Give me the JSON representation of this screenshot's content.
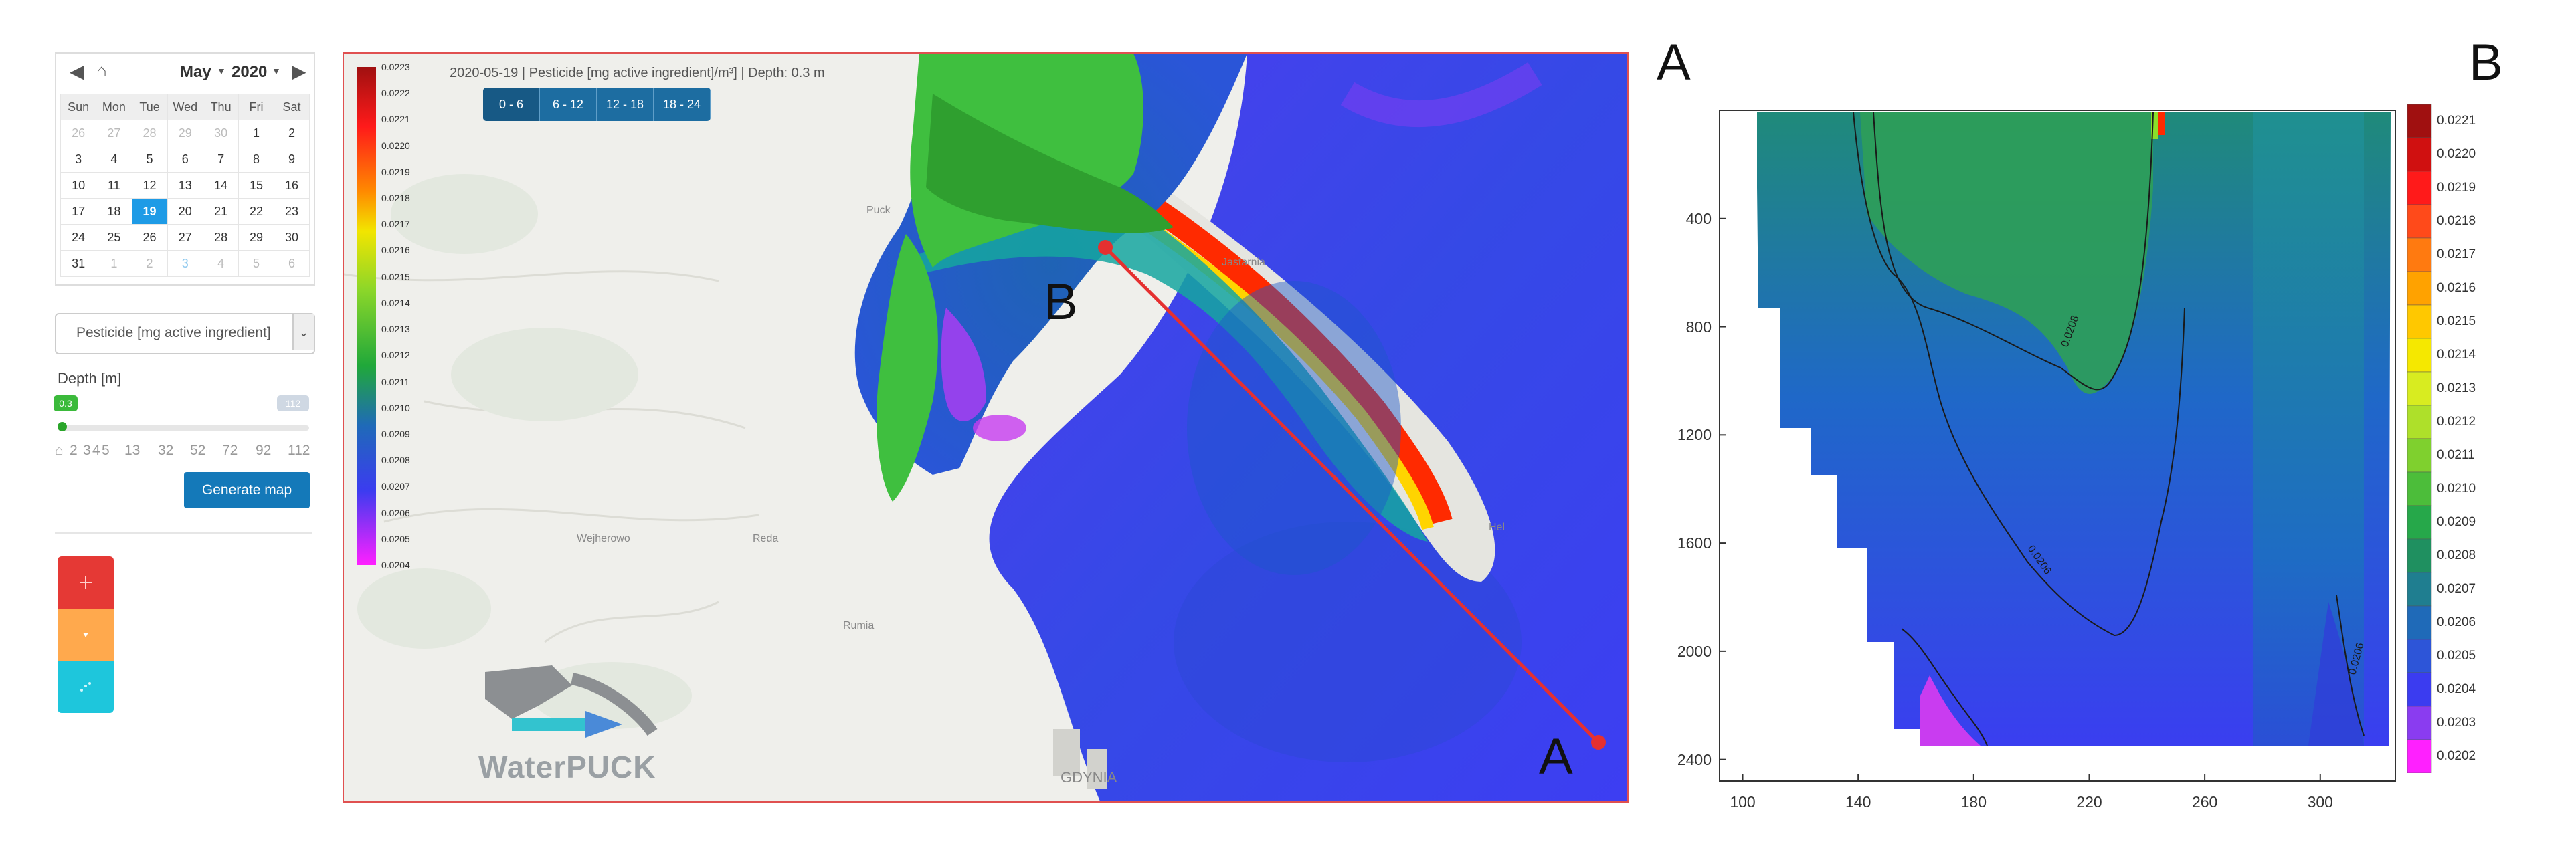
{
  "calendar": {
    "month": "May",
    "year": "2020",
    "weekdays": [
      "Sun",
      "Mon",
      "Tue",
      "Wed",
      "Thu",
      "Fri",
      "Sat"
    ],
    "weeks": [
      [
        "26",
        "27",
        "28",
        "29",
        "30",
        "1",
        "2"
      ],
      [
        "3",
        "4",
        "5",
        "6",
        "7",
        "8",
        "9"
      ],
      [
        "10",
        "11",
        "12",
        "13",
        "14",
        "15",
        "16"
      ],
      [
        "17",
        "18",
        "19",
        "20",
        "21",
        "22",
        "23"
      ],
      [
        "24",
        "25",
        "26",
        "27",
        "28",
        "29",
        "30"
      ],
      [
        "31",
        "1",
        "2",
        "3",
        "4",
        "5",
        "6"
      ]
    ],
    "selected_day": "19"
  },
  "parameter_select": {
    "value": "Pesticide [mg active ingredient]"
  },
  "depth": {
    "label": "Depth [m]",
    "min_handle": "0.3",
    "max_handle": "112",
    "ticks": [
      "2",
      "3",
      "4",
      "5",
      "13",
      "32",
      "52",
      "72",
      "92",
      "112"
    ]
  },
  "generate_button": "Generate map",
  "map": {
    "title": "2020-05-19 | Pesticide [mg active ingredient]/m³] | Depth: 0.3 m",
    "depth_tabs": [
      "0 - 6",
      "6 - 12",
      "12 - 18",
      "18 - 24"
    ],
    "places": [
      "Puck",
      "Jastarnia",
      "Wejherowo",
      "Reda",
      "Rumia",
      "Hel",
      "GDYNIA"
    ],
    "logo": "WaterPUCK",
    "legend_values": [
      "0.0223",
      "0.0222",
      "0.0221",
      "0.0220",
      "0.0219",
      "0.0218",
      "0.0217",
      "0.0216",
      "0.0215",
      "0.0214",
      "0.0213",
      "0.0212",
      "0.0211",
      "0.0210",
      "0.0209",
      "0.0208",
      "0.0207",
      "0.0206",
      "0.0205",
      "0.0204"
    ],
    "point_a": "A",
    "point_b": "B"
  },
  "cross_section": {
    "label_a": "A",
    "label_b": "B",
    "legend_values": [
      "0.0221",
      "0.0220",
      "0.0219",
      "0.0218",
      "0.0217",
      "0.0216",
      "0.0215",
      "0.0214",
      "0.0213",
      "0.0212",
      "0.0211",
      "0.0210",
      "0.0209",
      "0.0208",
      "0.0207",
      "0.0206",
      "0.0205",
      "0.0204",
      "0.0203",
      "0.0202"
    ],
    "contour_labels": [
      "0.0208",
      "0.0206",
      "0.0206"
    ]
  },
  "chart_data": {
    "type": "heatmap",
    "title": "",
    "xlabel": "",
    "ylabel": "",
    "x_ticks": [
      100,
      140,
      180,
      220,
      260,
      300
    ],
    "y_ticks": [
      400,
      800,
      1200,
      1600,
      2000,
      2400
    ],
    "xlim": [
      92,
      326
    ],
    "ylim": [
      2480,
      0
    ],
    "colorbar": {
      "min": 0.0202,
      "max": 0.0221,
      "step": 0.0001
    },
    "contours": [
      0.0208,
      0.0206
    ]
  }
}
